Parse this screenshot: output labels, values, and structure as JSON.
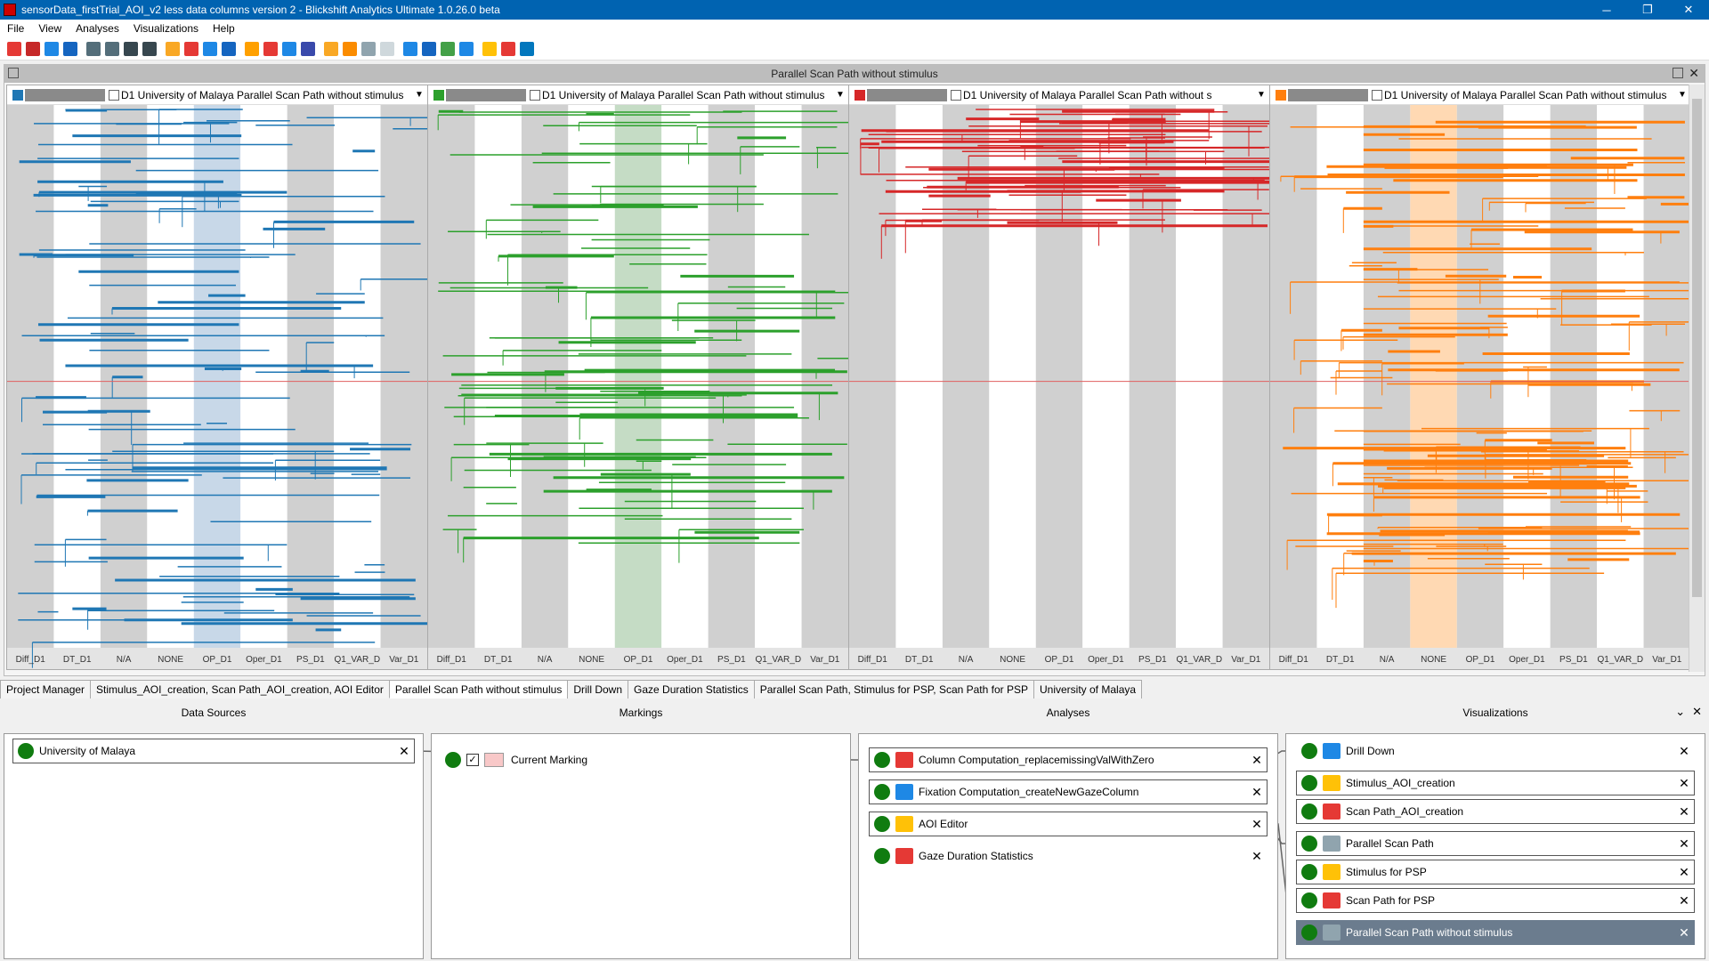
{
  "window": {
    "title": "sensorData_firstTrial_AOI_v2 less data columns version 2 - Blickshift Analytics Ultimate 1.0.26.0 beta",
    "minimize": "─",
    "restore": "❐",
    "close": "✕"
  },
  "menu": [
    "File",
    "View",
    "Analyses",
    "Visualizations",
    "Help"
  ],
  "toolbar_icon_colors": [
    "#e53935",
    "#c62828",
    "#1e88e5",
    "#1565c0",
    "#546e7a",
    "#546e7a",
    "#37474f",
    "#37474f",
    "#f9a825",
    "#e53935",
    "#1e88e5",
    "#1565c0",
    "#ffa000",
    "#e53935",
    "#1e88e5",
    "#3949ab",
    "#f9a825",
    "#fb8c00",
    "#90a4ae",
    "#cfd8dc",
    "#1e88e5",
    "#1565c0",
    "#43a047",
    "#1e88e5",
    "#ffc107",
    "#e53935",
    "#0277bd"
  ],
  "vis_panel": {
    "title": "Parallel Scan Path without stimulus",
    "close": "✕"
  },
  "panels": [
    {
      "color": "#1f77b4",
      "title": "D1 University of Malaya Parallel Scan Path without stimulus",
      "highlight": "OP_D1",
      "seed": 3,
      "density": 0.62,
      "wstart": 0.0,
      "wend": 1.0
    },
    {
      "color": "#2ca02c",
      "title": "D1 University of Malaya Parallel Scan Path without stimulus",
      "highlight": "OP_D1",
      "seed": 11,
      "density": 0.55,
      "wstart": 0.0,
      "wend": 0.82
    },
    {
      "color": "#d62728",
      "title": "D1 University of Malaya Parallel Scan Path without s",
      "highlight": "",
      "seed": 23,
      "density": 0.35,
      "wstart": 0.0,
      "wend": 0.22
    },
    {
      "color": "#ff7f0e",
      "title": "D1 University of Malaya Parallel Scan Path without stimulus",
      "highlight": "NONE",
      "seed": 37,
      "density": 0.85,
      "wstart": 0.0,
      "wend": 0.88
    }
  ],
  "axis_labels": [
    "Diff_D1",
    "DT_D1",
    "N/A",
    "NONE",
    "OP_D1",
    "Oper_D1",
    "PS_D1",
    "Q1_VAR_D",
    "Var_D1"
  ],
  "tabs": [
    {
      "label": "Project Manager",
      "active": false
    },
    {
      "label": "Stimulus_AOI_creation, Scan Path_AOI_creation, AOI Editor",
      "active": false
    },
    {
      "label": "Parallel Scan Path without stimulus",
      "active": true
    },
    {
      "label": "Drill Down",
      "active": false
    },
    {
      "label": "Gaze Duration Statistics",
      "active": false
    },
    {
      "label": "Parallel Scan Path, Stimulus for PSP, Scan Path for PSP",
      "active": false
    },
    {
      "label": "University of Malaya",
      "active": false
    }
  ],
  "dataflow": {
    "data_sources": {
      "header": "Data Sources",
      "items": [
        "University of Malaya"
      ]
    },
    "markings": {
      "header": "Markings",
      "items": [
        "Current Marking"
      ]
    },
    "analyses": {
      "header": "Analyses",
      "items": [
        "Column Computation_replacemissingValWithZero",
        "Fixation Computation_createNewGazeColumn",
        "AOI Editor",
        "Gaze Duration Statistics"
      ]
    },
    "visualizations": {
      "header": "Visualizations",
      "items": [
        "Drill Down",
        "Stimulus_AOI_creation",
        "Scan Path_AOI_creation",
        "Parallel Scan Path",
        "Stimulus for PSP",
        "Scan Path for PSP",
        "Parallel Scan Path without stimulus"
      ]
    },
    "close": "✕",
    "collapse": "⌄"
  }
}
